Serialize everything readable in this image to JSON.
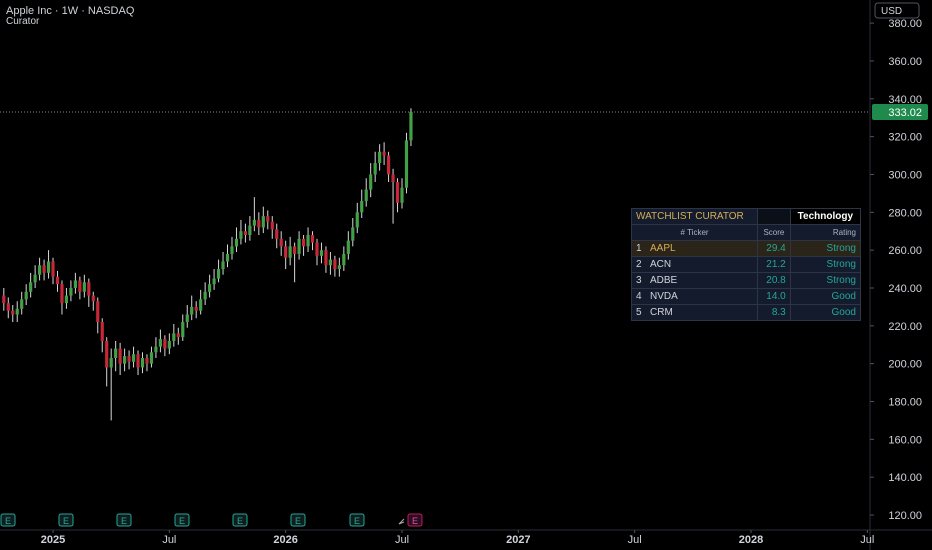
{
  "chart_data": {
    "type": "candlestick",
    "title": "Apple Inc · 1W · NASDAQ",
    "subtitle": "Curator",
    "currency": "USD",
    "categories": [
      null,
      null,
      null,
      null,
      null,
      null,
      null,
      null,
      null,
      null,
      null,
      null,
      null,
      null,
      null,
      null,
      null,
      null,
      null,
      null,
      null,
      null,
      null,
      null,
      null,
      null,
      null,
      null,
      null,
      null,
      null,
      null,
      null,
      null,
      null,
      null,
      null,
      null,
      null,
      null,
      null,
      null,
      null,
      null,
      null,
      null,
      null,
      null,
      null,
      null,
      null,
      null,
      null,
      null,
      null,
      null,
      null,
      null,
      null,
      null,
      null,
      null,
      null,
      null,
      null,
      null,
      null,
      null,
      null,
      null,
      null,
      null,
      null,
      null,
      null,
      null,
      null,
      null,
      null,
      null,
      null,
      null,
      null,
      null,
      null,
      null,
      null,
      null,
      null,
      null,
      null,
      null
    ],
    "open": [
      236,
      232,
      228,
      226,
      229,
      234,
      238,
      243,
      247,
      252,
      248,
      254,
      246,
      242,
      232,
      236,
      240,
      244,
      238,
      243,
      236,
      233,
      222,
      212,
      198,
      203,
      208,
      200,
      204,
      201,
      205,
      198,
      203,
      200,
      206,
      209,
      213,
      208,
      212,
      216,
      214,
      222,
      226,
      230,
      228,
      234,
      238,
      242,
      245,
      250,
      254,
      258,
      262,
      266,
      270,
      268,
      273,
      276,
      272,
      278,
      275,
      271,
      266,
      262,
      256,
      262,
      258,
      266,
      262,
      268,
      264,
      257,
      260,
      252,
      255,
      250,
      252,
      258,
      265,
      272,
      280,
      286,
      292,
      300,
      306,
      312,
      310,
      300,
      296,
      285,
      293,
      318
    ],
    "high": [
      240,
      235,
      231,
      233,
      238,
      242,
      248,
      252,
      256,
      255,
      260,
      256,
      249,
      244,
      240,
      244,
      248,
      246,
      247,
      245,
      238,
      235,
      224,
      214,
      208,
      212,
      211,
      208,
      207,
      209,
      207,
      206,
      205,
      209,
      214,
      218,
      215,
      216,
      221,
      219,
      226,
      231,
      236,
      233,
      239,
      243,
      247,
      250,
      255,
      259,
      263,
      267,
      272,
      276,
      274,
      278,
      288,
      280,
      283,
      281,
      278,
      274,
      270,
      265,
      267,
      264,
      270,
      268,
      272,
      270,
      266,
      264,
      262,
      259,
      257,
      256,
      262,
      270,
      277,
      285,
      292,
      298,
      306,
      312,
      316,
      317,
      312,
      303,
      298,
      298,
      322,
      335
    ],
    "low": [
      228,
      224,
      222,
      222,
      226,
      231,
      235,
      240,
      244,
      244,
      245,
      242,
      238,
      226,
      229,
      233,
      237,
      234,
      235,
      230,
      228,
      216,
      206,
      188,
      170,
      196,
      194,
      196,
      197,
      198,
      194,
      195,
      196,
      198,
      203,
      206,
      204,
      205,
      209,
      210,
      212,
      219,
      223,
      224,
      226,
      231,
      235,
      239,
      243,
      247,
      251,
      255,
      259,
      263,
      264,
      265,
      270,
      268,
      269,
      271,
      266,
      261,
      257,
      250,
      252,
      243,
      255,
      257,
      259,
      260,
      252,
      253,
      248,
      247,
      246,
      246,
      249,
      255,
      262,
      269,
      277,
      283,
      288,
      296,
      302,
      305,
      296,
      274,
      280,
      282,
      290,
      315
    ],
    "close": [
      232,
      228,
      226,
      229,
      234,
      238,
      243,
      247,
      252,
      248,
      254,
      246,
      242,
      232,
      236,
      240,
      244,
      238,
      243,
      236,
      233,
      222,
      212,
      198,
      203,
      208,
      200,
      204,
      201,
      205,
      198,
      203,
      200,
      206,
      209,
      213,
      208,
      212,
      216,
      214,
      222,
      226,
      230,
      228,
      234,
      238,
      242,
      245,
      250,
      254,
      258,
      262,
      266,
      270,
      268,
      273,
      276,
      272,
      278,
      275,
      271,
      266,
      262,
      256,
      262,
      258,
      266,
      262,
      268,
      264,
      257,
      260,
      252,
      255,
      250,
      252,
      258,
      265,
      272,
      280,
      286,
      292,
      300,
      306,
      312,
      310,
      300,
      296,
      285,
      293,
      318,
      333.02
    ],
    "up_color": "#43a047",
    "down_color": "#c62838",
    "xlim": [
      -0.85,
      193.6
    ],
    "xticks": [
      {
        "value": 11,
        "label": "2025"
      },
      {
        "value": 37,
        "label": "Jul"
      },
      {
        "value": 63,
        "label": "2026"
      },
      {
        "value": 89,
        "label": "Jul"
      },
      {
        "value": 115,
        "label": "2027"
      },
      {
        "value": 141,
        "label": "Jul"
      },
      {
        "value": 167,
        "label": "2028"
      },
      {
        "value": 193,
        "label": "Jul"
      }
    ],
    "ylim": [
      112.1,
      392.2
    ],
    "yticks": [
      {
        "value": 120,
        "label": "120.00"
      },
      {
        "value": 140,
        "label": "140.00"
      },
      {
        "value": 160,
        "label": "160.00"
      },
      {
        "value": 180,
        "label": "180.00"
      },
      {
        "value": 200,
        "label": "200.00"
      },
      {
        "value": 220,
        "label": "220.00"
      },
      {
        "value": 240,
        "label": "240.00"
      },
      {
        "value": 260,
        "label": "260.00"
      },
      {
        "value": 280,
        "label": "280.00"
      },
      {
        "value": 300,
        "label": "300.00"
      },
      {
        "value": 320,
        "label": "320.00"
      },
      {
        "value": 340,
        "label": "340.00"
      },
      {
        "value": 360,
        "label": "360.00"
      },
      {
        "value": 380,
        "label": "380.00"
      }
    ],
    "events": [
      "E",
      "E",
      "E",
      "E",
      "E",
      "E",
      "E",
      "E"
    ]
  },
  "watchlist": {
    "title": "WATCHLIST CURATOR",
    "sector": "Technology",
    "columns": [
      "# Ticker",
      "Score",
      "Rating"
    ],
    "rows": [
      [
        "1",
        "AAPL",
        "29.4",
        "Strong"
      ],
      [
        "2",
        "ACN",
        "21.2",
        "Strong"
      ],
      [
        "3",
        "ADBE",
        "20.8",
        "Strong"
      ],
      [
        "4",
        "NVDA",
        "14.0",
        "Good"
      ],
      [
        "5",
        "CRM",
        "8.3",
        "Good"
      ]
    ]
  }
}
